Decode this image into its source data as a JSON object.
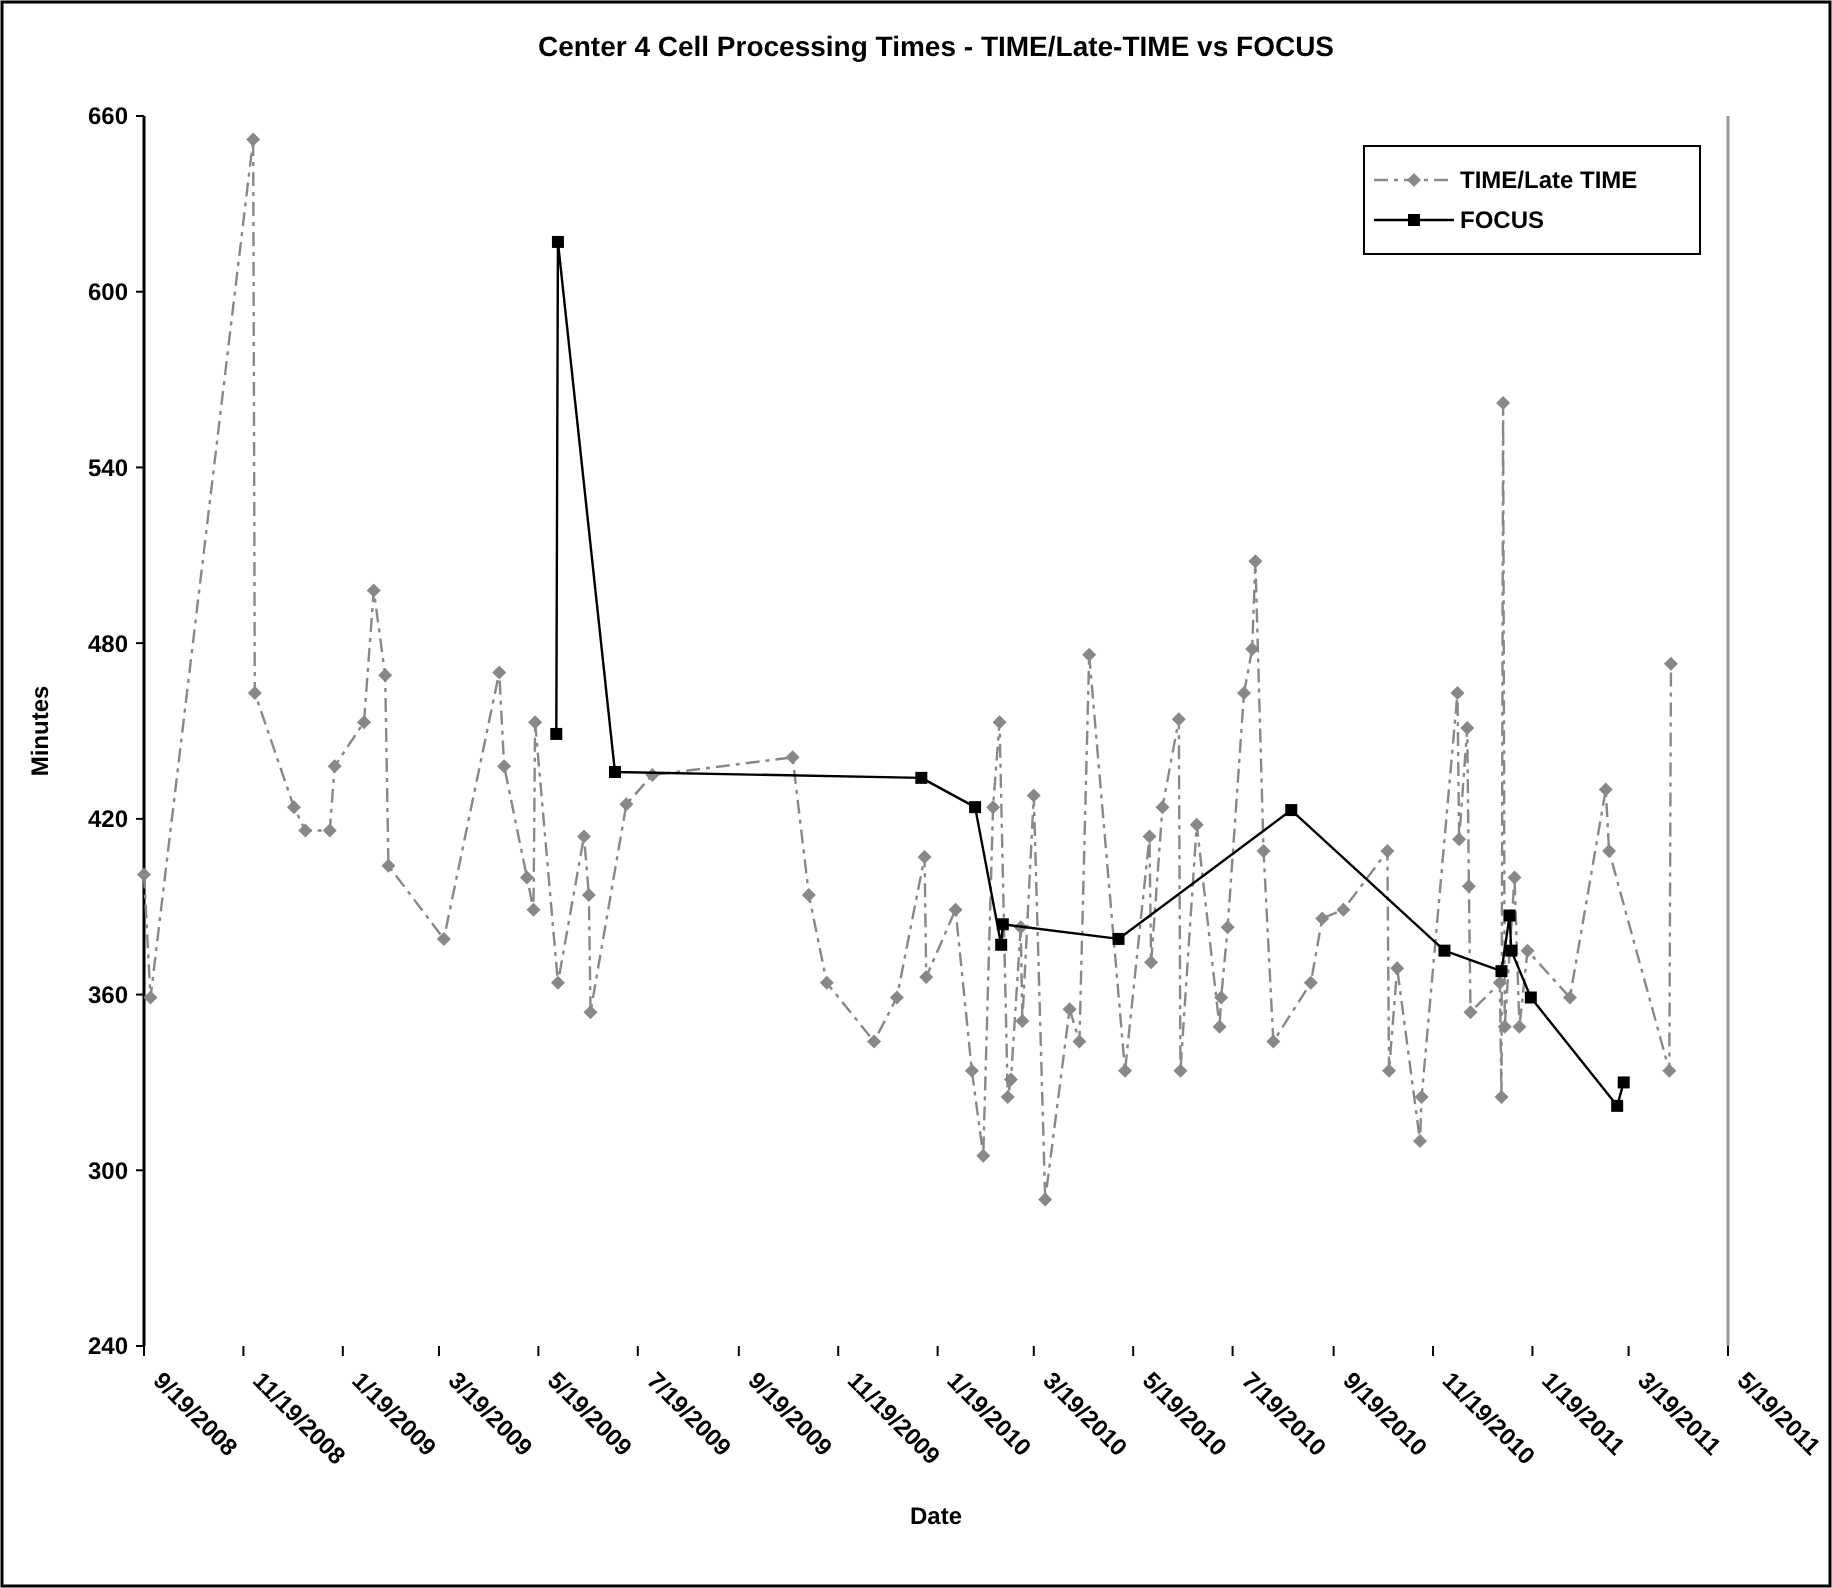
{
  "chart_data": {
    "type": "line",
    "title": "Center 4 Cell Processing Times - TIME/Late-TIME vs FOCUS",
    "xlabel": "Date",
    "ylabel": "Minutes",
    "xlim": [
      "2008-09-19",
      "2011-05-19"
    ],
    "xticks": [
      {
        "value": "2008-09-19",
        "label": "9/19/2008"
      },
      {
        "value": "2008-11-19",
        "label": "11/19/2008"
      },
      {
        "value": "2009-01-19",
        "label": "1/19/2009"
      },
      {
        "value": "2009-03-19",
        "label": "3/19/2009"
      },
      {
        "value": "2009-05-19",
        "label": "5/19/2009"
      },
      {
        "value": "2009-07-19",
        "label": "7/19/2009"
      },
      {
        "value": "2009-09-19",
        "label": "9/19/2009"
      },
      {
        "value": "2009-11-19",
        "label": "11/19/2009"
      },
      {
        "value": "2010-01-19",
        "label": "1/19/2010"
      },
      {
        "value": "2010-03-19",
        "label": "3/19/2010"
      },
      {
        "value": "2010-05-19",
        "label": "5/19/2010"
      },
      {
        "value": "2010-07-19",
        "label": "7/19/2010"
      },
      {
        "value": "2010-09-19",
        "label": "9/19/2010"
      },
      {
        "value": "2010-11-19",
        "label": "11/19/2010"
      },
      {
        "value": "2011-01-19",
        "label": "1/19/2011"
      },
      {
        "value": "2011-03-19",
        "label": "3/19/2011"
      },
      {
        "value": "2011-05-19",
        "label": "5/19/2011"
      }
    ],
    "ylim": [
      240,
      660
    ],
    "yticks": [
      240,
      300,
      360,
      420,
      480,
      540,
      600,
      660
    ],
    "grid": false,
    "legend": "top right",
    "series": [
      {
        "name": "TIME/Late TIME",
        "color": "#888888",
        "marker": "diamond",
        "line_style": "dashed",
        "x": [
          "2008-09-19",
          "2008-09-23",
          "2008-11-25",
          "2008-11-26",
          "2008-12-20",
          "2008-12-27",
          "2009-01-11",
          "2009-01-14",
          "2009-02-01",
          "2009-02-07",
          "2009-02-14",
          "2009-02-16",
          "2009-03-22",
          "2009-04-25",
          "2009-04-28",
          "2009-05-12",
          "2009-05-16",
          "2009-05-17",
          "2009-05-31",
          "2009-06-16",
          "2009-06-19",
          "2009-06-20",
          "2009-07-12",
          "2009-07-28",
          "2009-10-22",
          "2009-11-01",
          "2009-11-12",
          "2009-12-11",
          "2009-12-25",
          "2010-01-11",
          "2010-01-12",
          "2010-01-30",
          "2010-02-09",
          "2010-02-16",
          "2010-02-22",
          "2010-02-26",
          "2010-03-03",
          "2010-03-05",
          "2010-03-11",
          "2010-03-12",
          "2010-03-19",
          "2010-03-26",
          "2010-04-10",
          "2010-04-16",
          "2010-04-22",
          "2010-05-14",
          "2010-05-29",
          "2010-05-30",
          "2010-06-06",
          "2010-06-16",
          "2010-06-17",
          "2010-06-27",
          "2010-07-11",
          "2010-07-12",
          "2010-07-16",
          "2010-07-26",
          "2010-07-31",
          "2010-08-02",
          "2010-08-07",
          "2010-08-13",
          "2010-09-05",
          "2010-09-12",
          "2010-09-25",
          "2010-10-22",
          "2010-10-23",
          "2010-10-28",
          "2010-11-11",
          "2010-11-12",
          "2010-12-04",
          "2010-12-05",
          "2010-12-10",
          "2010-12-11",
          "2010-12-12",
          "2010-12-30",
          "2010-12-31",
          "2011-01-01",
          "2011-01-02",
          "2011-01-08",
          "2011-01-11",
          "2011-01-16",
          "2011-02-11",
          "2011-03-05",
          "2011-03-07",
          "2011-04-13",
          "2011-04-14"
        ],
        "values": [
          401,
          359,
          652,
          463,
          424,
          416,
          416,
          438,
          453,
          498,
          469,
          404,
          379,
          470,
          438,
          400,
          389,
          453,
          364,
          414,
          394,
          354,
          425,
          435,
          441,
          394,
          364,
          344,
          359,
          407,
          366,
          389,
          334,
          305,
          424,
          453,
          325,
          331,
          383,
          351,
          428,
          290,
          355,
          344,
          476,
          334,
          414,
          371,
          424,
          454,
          334,
          418,
          349,
          359,
          383,
          463,
          478,
          508,
          409,
          344,
          364,
          386,
          389,
          409,
          334,
          369,
          310,
          325,
          463,
          413,
          451,
          397,
          354,
          364,
          325,
          562,
          349,
          400,
          349,
          375,
          359,
          430,
          409,
          334,
          473
        ]
      },
      {
        "name": "FOCUS",
        "color": "#000000",
        "marker": "square",
        "line_style": "solid",
        "x": [
          "2009-05-30",
          "2009-05-31",
          "2009-07-05",
          "2010-01-09",
          "2010-02-11",
          "2010-02-27",
          "2010-02-28",
          "2010-05-10",
          "2010-08-24",
          "2010-11-26",
          "2010-12-31",
          "2011-01-05",
          "2011-01-06",
          "2011-01-18",
          "2011-03-12",
          "2011-03-16"
        ],
        "values": [
          449,
          617,
          436,
          434,
          424,
          377,
          384,
          379,
          423,
          375,
          368,
          387,
          375,
          359,
          322,
          330
        ]
      }
    ]
  }
}
